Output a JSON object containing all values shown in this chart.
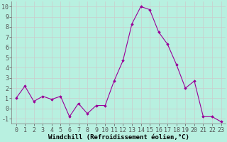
{
  "x": [
    0,
    1,
    2,
    3,
    4,
    5,
    6,
    7,
    8,
    9,
    10,
    11,
    12,
    13,
    14,
    15,
    16,
    17,
    18,
    19,
    20,
    21,
    22,
    23
  ],
  "y": [
    1.0,
    2.2,
    0.7,
    1.2,
    0.9,
    1.2,
    -0.8,
    0.5,
    -0.5,
    0.3,
    0.3,
    2.7,
    4.7,
    8.3,
    10.0,
    9.7,
    7.5,
    6.3,
    4.3,
    2.0,
    2.7,
    -0.8,
    -0.8,
    -1.3
  ],
  "line_color": "#990099",
  "marker_color": "#990099",
  "bg_color": "#b8f0e0",
  "grid_color": "#cccccc",
  "xlabel": "Windchill (Refroidissement éolien,°C)",
  "xlim": [
    -0.5,
    23.5
  ],
  "ylim": [
    -1.5,
    10.5
  ],
  "ytick_values": [
    -1,
    0,
    1,
    2,
    3,
    4,
    5,
    6,
    7,
    8,
    9,
    10
  ],
  "tick_font_size": 6.0,
  "label_font_size": 6.5
}
